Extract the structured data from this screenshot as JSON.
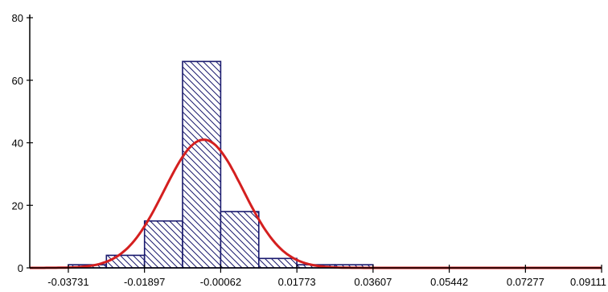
{
  "chart_data": {
    "type": "bar",
    "title": "",
    "xlabel": "",
    "ylabel": "",
    "xlim": [
      -0.0466,
      0.0911
    ],
    "ylim": [
      0,
      80
    ],
    "x_ticks": [
      {
        "value": -0.03731,
        "label": "-0.03731"
      },
      {
        "value": -0.01897,
        "label": "-0.01897"
      },
      {
        "value": -0.00062,
        "label": "-0.00062"
      },
      {
        "value": 0.01773,
        "label": "0.01773"
      },
      {
        "value": 0.03607,
        "label": "0.03607"
      },
      {
        "value": 0.05442,
        "label": "0.05442"
      },
      {
        "value": 0.07277,
        "label": "0.07277"
      },
      {
        "value": 0.09111,
        "label": "0.09111"
      }
    ],
    "y_ticks": [
      {
        "value": 0,
        "label": "0"
      },
      {
        "value": 20,
        "label": "20"
      },
      {
        "value": 40,
        "label": "40"
      },
      {
        "value": 60,
        "label": "60"
      },
      {
        "value": 80,
        "label": "80"
      }
    ],
    "bins": [
      {
        "from": -0.0466,
        "to": -0.03731,
        "count": 0
      },
      {
        "from": -0.03731,
        "to": -0.02814,
        "count": 1
      },
      {
        "from": -0.02814,
        "to": -0.01897,
        "count": 4
      },
      {
        "from": -0.01897,
        "to": -0.0098,
        "count": 15
      },
      {
        "from": -0.0098,
        "to": -0.00062,
        "count": 66
      },
      {
        "from": -0.00062,
        "to": 0.00856,
        "count": 18
      },
      {
        "from": 0.00856,
        "to": 0.01773,
        "count": 3
      },
      {
        "from": 0.01773,
        "to": 0.0269,
        "count": 1
      },
      {
        "from": 0.0269,
        "to": 0.03607,
        "count": 1
      }
    ],
    "normal_curve": {
      "mean": -0.0047,
      "sd": 0.0095,
      "peak": 41
    },
    "grid": false,
    "legend": "none",
    "colors": {
      "bar_edge": "#1a1a6e",
      "hatch": "#1a1a6e",
      "curve": "#d41f1f",
      "axis": "#000000"
    }
  }
}
